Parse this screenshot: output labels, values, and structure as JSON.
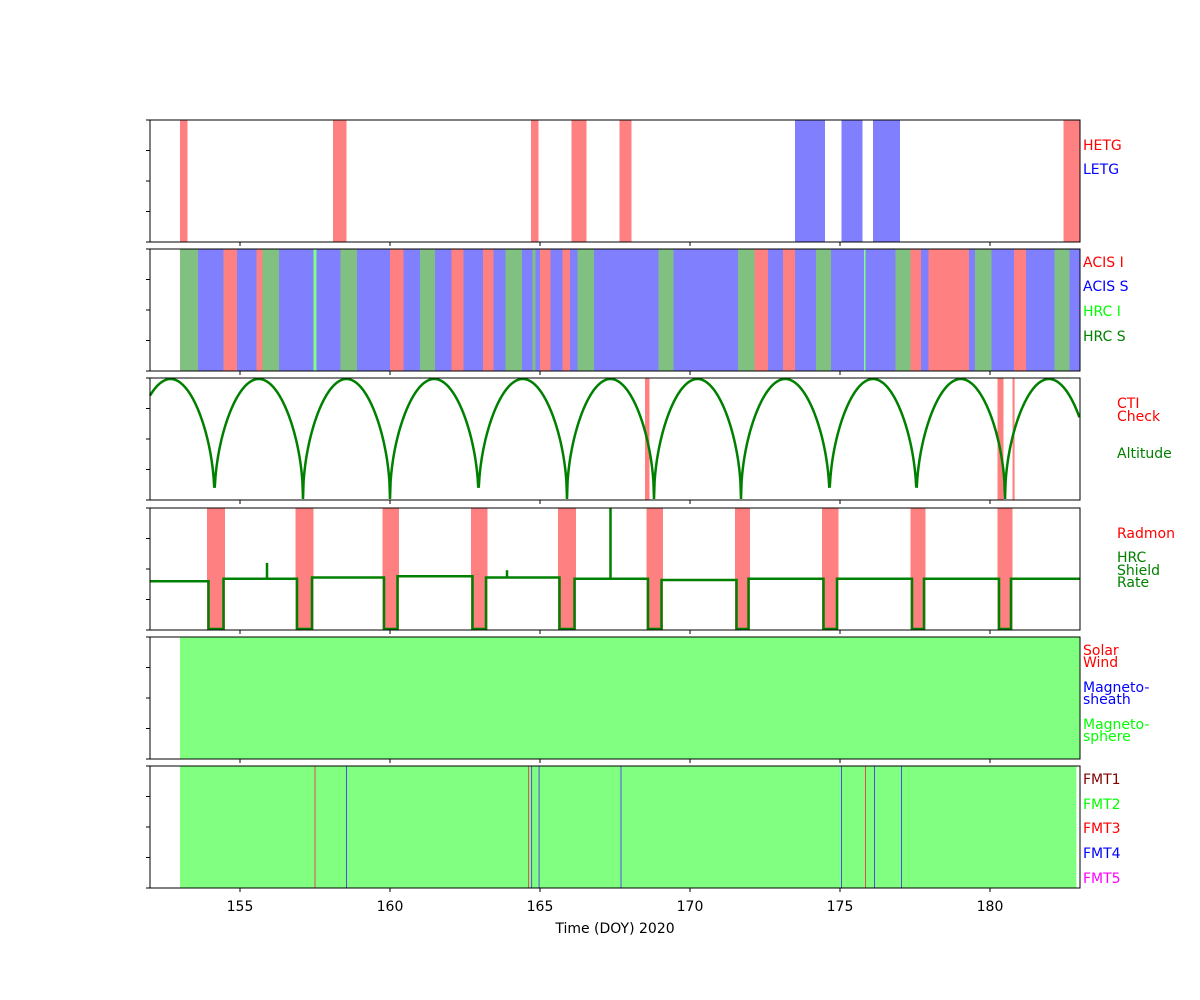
{
  "chart_data": {
    "type": "timeline",
    "xlabel": "Time (DOY) 2020",
    "xlim": [
      152.0,
      183.0
    ],
    "x_ticks": [
      155,
      160,
      165,
      170,
      175,
      180
    ],
    "colors": {
      "red": "#ff8080",
      "blue": "#8080ff",
      "green": "#80c080",
      "lightgreen": "#80ff80",
      "line": "#008000"
    },
    "panels": [
      {
        "name": "grating",
        "legend": [
          {
            "label": "HETG",
            "color": "#ff0000"
          },
          {
            "label": "LETG",
            "color": "#0000ff"
          }
        ],
        "intervals": [
          {
            "start": 153.0,
            "end": 153.25,
            "color": "red"
          },
          {
            "start": 158.1,
            "end": 158.55,
            "color": "red"
          },
          {
            "start": 164.7,
            "end": 164.95,
            "color": "red"
          },
          {
            "start": 166.05,
            "end": 166.55,
            "color": "red"
          },
          {
            "start": 167.65,
            "end": 168.05,
            "color": "red"
          },
          {
            "start": 173.5,
            "end": 174.5,
            "color": "blue"
          },
          {
            "start": 175.05,
            "end": 175.75,
            "color": "blue"
          },
          {
            "start": 176.1,
            "end": 177.0,
            "color": "blue"
          },
          {
            "start": 182.45,
            "end": 183.0,
            "color": "red"
          }
        ]
      },
      {
        "name": "instrument",
        "legend": [
          {
            "label": "ACIS I",
            "color": "#ff0000"
          },
          {
            "label": "ACIS S",
            "color": "#0000ff"
          },
          {
            "label": "HRC I",
            "color": "#00ff00"
          },
          {
            "label": "HRC S",
            "color": "#008000"
          }
        ],
        "intervals": [
          {
            "start": 153.0,
            "end": 153.6,
            "color": "green"
          },
          {
            "start": 153.6,
            "end": 154.45,
            "color": "blue"
          },
          {
            "start": 154.45,
            "end": 154.9,
            "color": "red"
          },
          {
            "start": 154.9,
            "end": 155.55,
            "color": "blue"
          },
          {
            "start": 155.55,
            "end": 155.75,
            "color": "red"
          },
          {
            "start": 155.75,
            "end": 156.3,
            "color": "green"
          },
          {
            "start": 156.3,
            "end": 157.45,
            "color": "blue"
          },
          {
            "start": 157.45,
            "end": 157.55,
            "color": "lightgreen"
          },
          {
            "start": 157.55,
            "end": 158.35,
            "color": "blue"
          },
          {
            "start": 158.35,
            "end": 158.9,
            "color": "green"
          },
          {
            "start": 158.9,
            "end": 160.0,
            "color": "blue"
          },
          {
            "start": 160.0,
            "end": 160.45,
            "color": "red"
          },
          {
            "start": 160.45,
            "end": 161.0,
            "color": "blue"
          },
          {
            "start": 161.0,
            "end": 161.5,
            "color": "green"
          },
          {
            "start": 161.5,
            "end": 162.05,
            "color": "blue"
          },
          {
            "start": 162.05,
            "end": 162.45,
            "color": "red"
          },
          {
            "start": 162.45,
            "end": 163.1,
            "color": "blue"
          },
          {
            "start": 163.1,
            "end": 163.45,
            "color": "red"
          },
          {
            "start": 163.45,
            "end": 163.85,
            "color": "blue"
          },
          {
            "start": 163.85,
            "end": 164.4,
            "color": "green"
          },
          {
            "start": 164.4,
            "end": 164.75,
            "color": "blue"
          },
          {
            "start": 164.75,
            "end": 164.85,
            "color": "green"
          },
          {
            "start": 164.85,
            "end": 165.0,
            "color": "blue"
          },
          {
            "start": 165.0,
            "end": 165.35,
            "color": "red"
          },
          {
            "start": 165.35,
            "end": 165.75,
            "color": "blue"
          },
          {
            "start": 165.75,
            "end": 166.0,
            "color": "red"
          },
          {
            "start": 166.0,
            "end": 166.25,
            "color": "blue"
          },
          {
            "start": 166.25,
            "end": 166.8,
            "color": "green"
          },
          {
            "start": 166.8,
            "end": 168.95,
            "color": "blue"
          },
          {
            "start": 168.95,
            "end": 169.45,
            "color": "green"
          },
          {
            "start": 169.45,
            "end": 171.6,
            "color": "blue"
          },
          {
            "start": 171.6,
            "end": 172.15,
            "color": "green"
          },
          {
            "start": 172.15,
            "end": 172.6,
            "color": "red"
          },
          {
            "start": 172.6,
            "end": 173.1,
            "color": "blue"
          },
          {
            "start": 173.1,
            "end": 173.5,
            "color": "red"
          },
          {
            "start": 173.5,
            "end": 174.2,
            "color": "blue"
          },
          {
            "start": 174.2,
            "end": 174.7,
            "color": "green"
          },
          {
            "start": 174.7,
            "end": 175.8,
            "color": "blue"
          },
          {
            "start": 175.8,
            "end": 175.85,
            "color": "lightgreen"
          },
          {
            "start": 175.85,
            "end": 176.85,
            "color": "blue"
          },
          {
            "start": 176.85,
            "end": 177.35,
            "color": "green"
          },
          {
            "start": 177.35,
            "end": 177.7,
            "color": "red"
          },
          {
            "start": 177.7,
            "end": 177.95,
            "color": "blue"
          },
          {
            "start": 177.95,
            "end": 179.3,
            "color": "red"
          },
          {
            "start": 179.3,
            "end": 179.5,
            "color": "blue"
          },
          {
            "start": 179.5,
            "end": 180.05,
            "color": "green"
          },
          {
            "start": 180.05,
            "end": 180.8,
            "color": "blue"
          },
          {
            "start": 180.8,
            "end": 181.2,
            "color": "red"
          },
          {
            "start": 181.2,
            "end": 182.15,
            "color": "blue"
          },
          {
            "start": 182.15,
            "end": 182.65,
            "color": "green"
          },
          {
            "start": 182.65,
            "end": 183.0,
            "color": "blue"
          }
        ]
      },
      {
        "name": "altitude",
        "legend": [
          {
            "label": "CTI",
            "color": "#ff0000"
          },
          {
            "label": "Check",
            "color": "#ff0000"
          },
          {
            "label": "Altitude",
            "color": "#008000"
          }
        ],
        "intervals": [
          {
            "start": 168.5,
            "end": 168.65,
            "color": "red"
          },
          {
            "start": 180.25,
            "end": 180.45,
            "color": "red"
          },
          {
            "start": 180.75,
            "end": 180.82,
            "color": "red"
          }
        ],
        "curve": {
          "kind": "altitude",
          "perigees": [
            154.15,
            157.1,
            160.0,
            162.95,
            165.9,
            168.8,
            171.7,
            174.65,
            177.55,
            180.5
          ]
        }
      },
      {
        "name": "radmon",
        "legend": [
          {
            "label": "Radmon",
            "color": "#ff0000"
          },
          {
            "label": "HRC",
            "color": "#008000"
          },
          {
            "label": "Shield",
            "color": "#008000"
          },
          {
            "label": "Rate",
            "color": "#008000"
          }
        ],
        "intervals": [
          {
            "start": 153.9,
            "end": 154.5,
            "color": "red"
          },
          {
            "start": 156.85,
            "end": 157.45,
            "color": "red"
          },
          {
            "start": 159.75,
            "end": 160.3,
            "color": "red"
          },
          {
            "start": 162.7,
            "end": 163.25,
            "color": "red"
          },
          {
            "start": 165.6,
            "end": 166.2,
            "color": "red"
          },
          {
            "start": 168.55,
            "end": 169.1,
            "color": "red"
          },
          {
            "start": 171.5,
            "end": 172.0,
            "color": "red"
          },
          {
            "start": 174.4,
            "end": 174.95,
            "color": "red"
          },
          {
            "start": 177.35,
            "end": 177.85,
            "color": "red"
          },
          {
            "start": 180.25,
            "end": 180.75,
            "color": "red"
          }
        ],
        "curve": {
          "kind": "shield",
          "levels": [
            0.4,
            0.42,
            0.43,
            0.44,
            0.43,
            0.42,
            0.41,
            0.42,
            0.42,
            0.42,
            0.42
          ],
          "spikes": [
            {
              "x": 155.9,
              "value": 0.55
            },
            {
              "x": 163.9,
              "value": 0.49
            },
            {
              "x": 167.35,
              "value": 1.0
            }
          ]
        }
      },
      {
        "name": "orbit-region",
        "legend": [
          {
            "label": "Solar",
            "color": "#ff0000"
          },
          {
            "label": "Wind",
            "color": "#ff0000"
          },
          {
            "label": "Magneto-",
            "color": "#0000ff"
          },
          {
            "label": "sheath",
            "color": "#0000ff"
          },
          {
            "label": "Magneto-",
            "color": "#00ff00"
          },
          {
            "label": "sphere",
            "color": "#00ff00"
          }
        ],
        "intervals": [
          {
            "start": 153.0,
            "end": 183.0,
            "color": "lightgreen"
          }
        ]
      },
      {
        "name": "format",
        "legend": [
          {
            "label": "FMT1",
            "color": "#800000"
          },
          {
            "label": "FMT2",
            "color": "#00ff00"
          },
          {
            "label": "FMT3",
            "color": "#ff0000"
          },
          {
            "label": "FMT4",
            "color": "#0000ff"
          },
          {
            "label": "FMT5",
            "color": "#ff00ff"
          }
        ],
        "intervals": [
          {
            "start": 153.0,
            "end": 182.88,
            "color": "lightgreen"
          }
        ],
        "lines": [
          {
            "x": 157.5,
            "color": "#e05050"
          },
          {
            "x": 158.55,
            "color": "#5050e0"
          },
          {
            "x": 164.62,
            "color": "#e05050"
          },
          {
            "x": 164.72,
            "color": "#5050e0"
          },
          {
            "x": 164.97,
            "color": "#5050e0"
          },
          {
            "x": 167.7,
            "color": "#5050e0"
          },
          {
            "x": 175.05,
            "color": "#5050e0"
          },
          {
            "x": 175.85,
            "color": "#e05050"
          },
          {
            "x": 176.15,
            "color": "#5050e0"
          },
          {
            "x": 177.05,
            "color": "#5050e0"
          }
        ]
      }
    ]
  }
}
